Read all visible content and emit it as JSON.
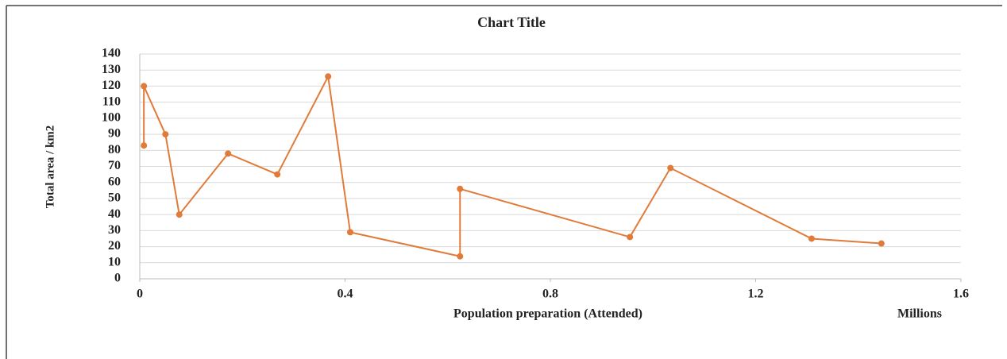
{
  "chart_data": {
    "type": "line",
    "title": "Chart Title",
    "x_label": "Population  preparation  (Attended)",
    "x_unit_label": "Millions",
    "y_label": "Total area / km2",
    "series": [
      {
        "name": "Total area / km2",
        "color": "#e07b39",
        "x": [
          0.008,
          0.008,
          0.05,
          0.077,
          0.172,
          0.268,
          0.367,
          0.41,
          0.624,
          0.624,
          0.955,
          1.034,
          1.309,
          1.445
        ],
        "values": [
          83,
          120,
          90,
          40,
          78,
          65,
          126,
          29,
          14,
          56,
          26,
          69,
          25,
          22
        ]
      }
    ],
    "xlim": [
      0,
      1.6
    ],
    "xticks": [
      0,
      0.4,
      0.8,
      1.2,
      1.6
    ],
    "ylim": [
      0,
      140
    ],
    "yticks": [
      0,
      10,
      20,
      30,
      40,
      50,
      60,
      70,
      80,
      90,
      100,
      110,
      120,
      130,
      140
    ],
    "grid": true
  }
}
